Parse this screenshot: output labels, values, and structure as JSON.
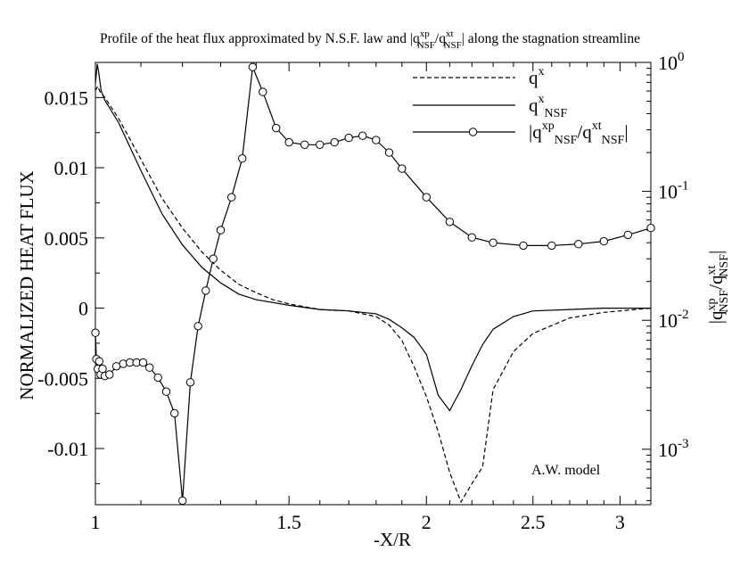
{
  "chart_data": {
    "type": "line",
    "title": "Profile of the heat flux approximated by N.S.F. law and |q^{xp}_{NSF}/q^{xt}_{NSF}| along the stagnation streamline",
    "xlabel": "-X/R",
    "ylabel_left": "NORMALIZED HEAT FLUX",
    "ylabel_right": "|q^{xp}_{NSF}/q^{xt}_{NSF}|",
    "annotation": "A.W. model",
    "x_scale": "log",
    "xlim": [
      1.0,
      3.2
    ],
    "ylim_left": [
      -0.014,
      0.0175
    ],
    "ylim_right_log10": [
      -3.43,
      0.0
    ],
    "x_ticks": [
      1,
      1.5,
      2,
      2.5,
      3
    ],
    "x_tick_labels": [
      "1",
      "1.5",
      "2",
      "2.5",
      "3"
    ],
    "y_ticks_left": [
      0.015,
      0.01,
      0.005,
      0,
      -0.005,
      -0.01
    ],
    "y_tick_labels_left": [
      "0.015",
      "0.01",
      "0.005",
      "0",
      "-0.005",
      "-0.01"
    ],
    "y_ticks_right_exp": [
      0,
      -1,
      -2,
      -3
    ],
    "series": [
      {
        "name": "q^x",
        "legend_label": "q^{x}",
        "axis": "left",
        "style": "dashed",
        "x": [
          1.0,
          1.005,
          1.01,
          1.02,
          1.05,
          1.1,
          1.15,
          1.2,
          1.25,
          1.3,
          1.35,
          1.4,
          1.45,
          1.5,
          1.6,
          1.7,
          1.8,
          1.85,
          1.9,
          1.95,
          2.0,
          2.05,
          2.1,
          2.15,
          2.2,
          2.25,
          2.3,
          2.4,
          2.5,
          2.7,
          2.9,
          3.1,
          3.2
        ],
        "values": [
          0.0155,
          0.0158,
          0.0154,
          0.015,
          0.0135,
          0.0106,
          0.0078,
          0.0057,
          0.004,
          0.0027,
          0.0017,
          0.0011,
          0.0006,
          0.0003,
          -0.0001,
          -0.0002,
          -0.0006,
          -0.0012,
          -0.0023,
          -0.0042,
          -0.0063,
          -0.0088,
          -0.0117,
          -0.0138,
          -0.0125,
          -0.0113,
          -0.0058,
          -0.0031,
          -0.0018,
          -0.0007,
          -0.0003,
          -0.0001,
          0.0
        ]
      },
      {
        "name": "q^x_NSF",
        "legend_label": "q^{x}_{NSF}",
        "axis": "left",
        "style": "solid",
        "x": [
          1.0,
          1.004,
          1.007,
          1.012,
          1.02,
          1.05,
          1.1,
          1.15,
          1.2,
          1.25,
          1.3,
          1.35,
          1.4,
          1.5,
          1.6,
          1.7,
          1.8,
          1.85,
          1.9,
          1.95,
          2.0,
          2.05,
          2.1,
          2.15,
          2.2,
          2.25,
          2.3,
          2.4,
          2.5,
          2.7,
          2.9,
          3.1,
          3.2
        ],
        "values": [
          0.016,
          0.0174,
          0.0168,
          0.0155,
          0.0148,
          0.0132,
          0.0098,
          0.0067,
          0.0045,
          0.0029,
          0.0018,
          0.001,
          0.0006,
          0.0002,
          -0.0001,
          -0.0002,
          -0.0004,
          -0.0008,
          -0.0014,
          -0.0021,
          -0.0033,
          -0.0062,
          -0.0073,
          -0.0058,
          -0.0041,
          -0.0026,
          -0.0015,
          -0.0006,
          -0.0002,
          -0.0001,
          0.0,
          0.0,
          0.0
        ]
      },
      {
        "name": "|q^xp_NSF/q^xt_NSF|",
        "legend_label": "|q^{xp}_{NSF}/q^{xt}_{NSF}|",
        "axis": "right",
        "scale": "log",
        "style": "solid-circle",
        "x": [
          1.0,
          1.002,
          1.005,
          1.008,
          1.011,
          1.015,
          1.02,
          1.03,
          1.045,
          1.06,
          1.075,
          1.09,
          1.105,
          1.12,
          1.14,
          1.16,
          1.18,
          1.2,
          1.22,
          1.24,
          1.26,
          1.28,
          1.3,
          1.33,
          1.36,
          1.39,
          1.42,
          1.46,
          1.5,
          1.55,
          1.6,
          1.65,
          1.7,
          1.75,
          1.8,
          1.85,
          1.9,
          2.0,
          2.1,
          2.2,
          2.3,
          2.45,
          2.6,
          2.75,
          2.9,
          3.05,
          3.2
        ],
        "values": [
          0.008,
          0.005,
          0.0042,
          0.0048,
          0.0038,
          0.0042,
          0.0037,
          0.0038,
          0.0044,
          0.0046,
          0.0047,
          0.0047,
          0.0047,
          0.0043,
          0.0036,
          0.0028,
          0.0019,
          0.0004,
          0.0033,
          0.009,
          0.017,
          0.03,
          0.05,
          0.09,
          0.18,
          0.92,
          0.59,
          0.31,
          0.24,
          0.23,
          0.23,
          0.24,
          0.26,
          0.27,
          0.25,
          0.2,
          0.15,
          0.09,
          0.058,
          0.044,
          0.04,
          0.038,
          0.038,
          0.039,
          0.041,
          0.046,
          0.052
        ]
      }
    ]
  }
}
